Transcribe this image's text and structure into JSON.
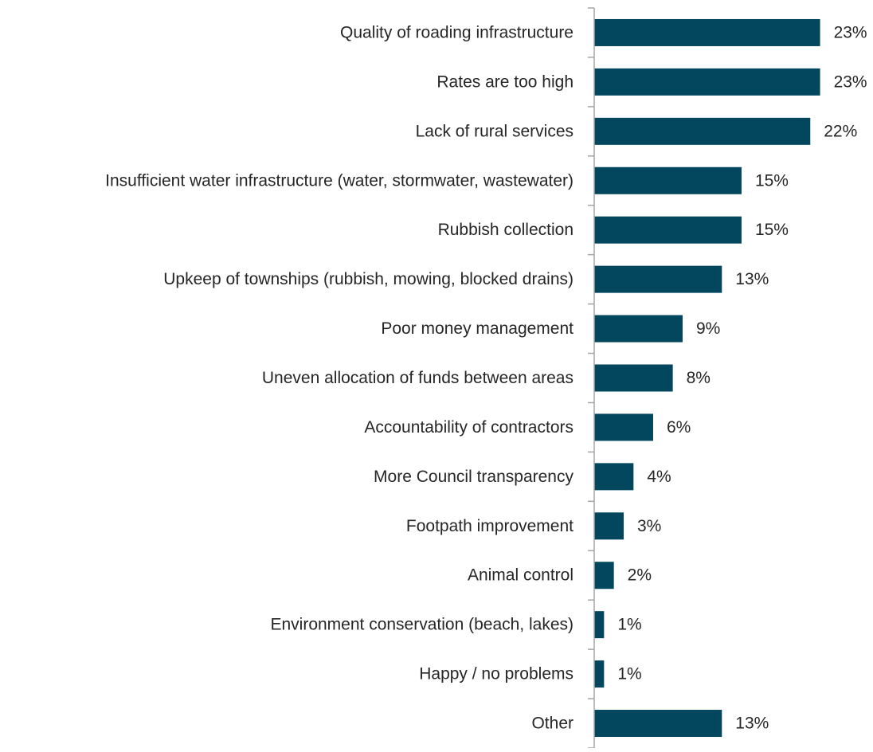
{
  "chart_data": {
    "type": "bar",
    "orientation": "horizontal",
    "categories": [
      "Quality of roading infrastructure",
      "Rates are too high",
      "Lack of rural services",
      "Insufficient water infrastructure (water, stormwater, wastewater)",
      "Rubbish collection",
      "Upkeep of townships (rubbish, mowing, blocked drains)",
      "Poor money management",
      "Uneven allocation of funds between areas",
      "Accountability of contractors",
      "More Council transparency",
      "Footpath improvement",
      "Animal control",
      "Environment conservation (beach, lakes)",
      "Happy / no problems",
      "Other"
    ],
    "values": [
      23,
      23,
      22,
      15,
      15,
      13,
      9,
      8,
      6,
      4,
      3,
      2,
      1,
      1,
      13
    ],
    "data_labels": [
      "23%",
      "23%",
      "22%",
      "15%",
      "15%",
      "13%",
      "9%",
      "8%",
      "6%",
      "4%",
      "3%",
      "2%",
      "1%",
      "1%",
      "13%"
    ],
    "value_unit": "%",
    "title": "",
    "xlabel": "",
    "ylabel": "",
    "grid": false,
    "legend": "none",
    "bar_color": "#02475E"
  }
}
